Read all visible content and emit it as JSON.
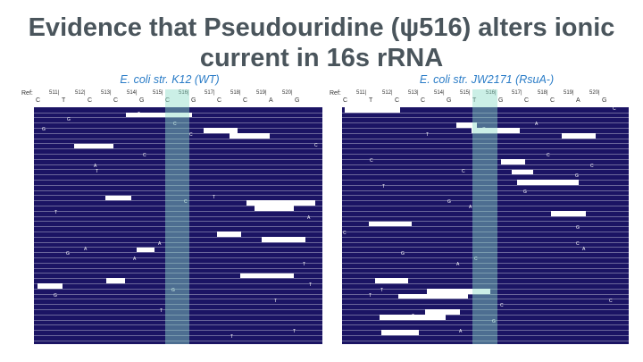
{
  "slide": {
    "title": "Evidence that Pseudouridine (ψ516) alters ionic current in 16s rRNA",
    "colors": {
      "title": "#4a555c",
      "label": "#2a7cc7",
      "read": "#1b1464",
      "highlight": "#8cdcc8"
    }
  },
  "left": {
    "label": "E. coli str. K12 (WT)",
    "ref_label": "Ref:",
    "positions": [
      "511|",
      "512|",
      "513|",
      "514|",
      "515|",
      "516|",
      "517|",
      "518|",
      "519|",
      "520|"
    ],
    "bases": [
      "C",
      "T",
      "C",
      "C",
      "G",
      "C",
      "G",
      "C",
      "C",
      "A",
      "G"
    ]
  },
  "right": {
    "label": "E. coli str. JW2171 (RsuA-)",
    "ref_label": "Ref:",
    "positions": [
      "511|",
      "512|",
      "513|",
      "514|",
      "515|",
      "516|",
      "517|",
      "518|",
      "519|",
      "520|"
    ],
    "bases": [
      "C",
      "T",
      "C",
      "C",
      "G",
      "T",
      "G",
      "C",
      "C",
      "A",
      "G"
    ]
  }
}
